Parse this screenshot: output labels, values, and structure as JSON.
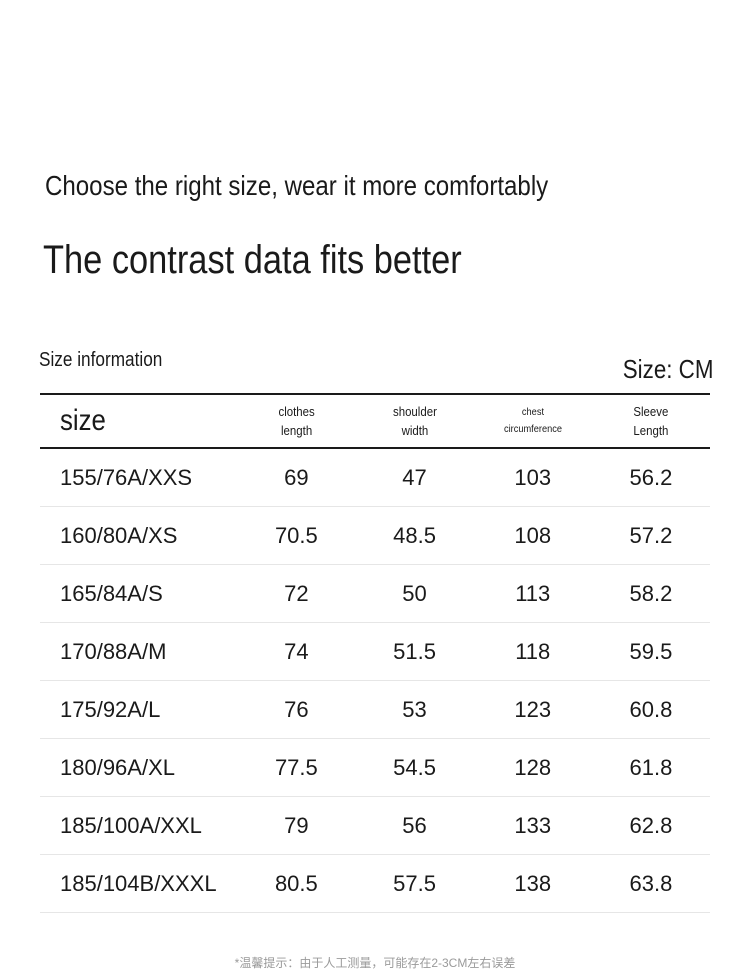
{
  "heading": {
    "line1": "Choose the right size, wear it more comfortably",
    "line2": "The contrast data fits better"
  },
  "size_info": {
    "label": "Size information",
    "unit": "Size: CM"
  },
  "table": {
    "headers": {
      "size": "size",
      "length": [
        "clothes",
        "length"
      ],
      "shoulder": [
        "shoulder",
        "width"
      ],
      "chest": [
        "chest",
        "circumference"
      ],
      "sleeve": [
        "Sleeve",
        "Length"
      ]
    },
    "rows": [
      {
        "size": "155/76A/XXS",
        "length": "69",
        "shoulder": "47",
        "chest": "103",
        "sleeve": "56.2"
      },
      {
        "size": "160/80A/XS",
        "length": "70.5",
        "shoulder": "48.5",
        "chest": "108",
        "sleeve": "57.2"
      },
      {
        "size": "165/84A/S",
        "length": "72",
        "shoulder": "50",
        "chest": "113",
        "sleeve": "58.2"
      },
      {
        "size": "170/88A/M",
        "length": "74",
        "shoulder": "51.5",
        "chest": "118",
        "sleeve": "59.5"
      },
      {
        "size": "175/92A/L",
        "length": "76",
        "shoulder": "53",
        "chest": "123",
        "sleeve": "60.8"
      },
      {
        "size": "180/96A/XL",
        "length": "77.5",
        "shoulder": "54.5",
        "chest": "128",
        "sleeve": "61.8"
      },
      {
        "size": "185/100A/XXL",
        "length": "79",
        "shoulder": "56",
        "chest": "133",
        "sleeve": "62.8"
      },
      {
        "size": "185/104B/XXXL",
        "length": "80.5",
        "shoulder": "57.5",
        "chest": "138",
        "sleeve": "63.8"
      }
    ]
  },
  "footnote": "*温馨提示：由于人工测量，可能存在2-3CM左右误差"
}
